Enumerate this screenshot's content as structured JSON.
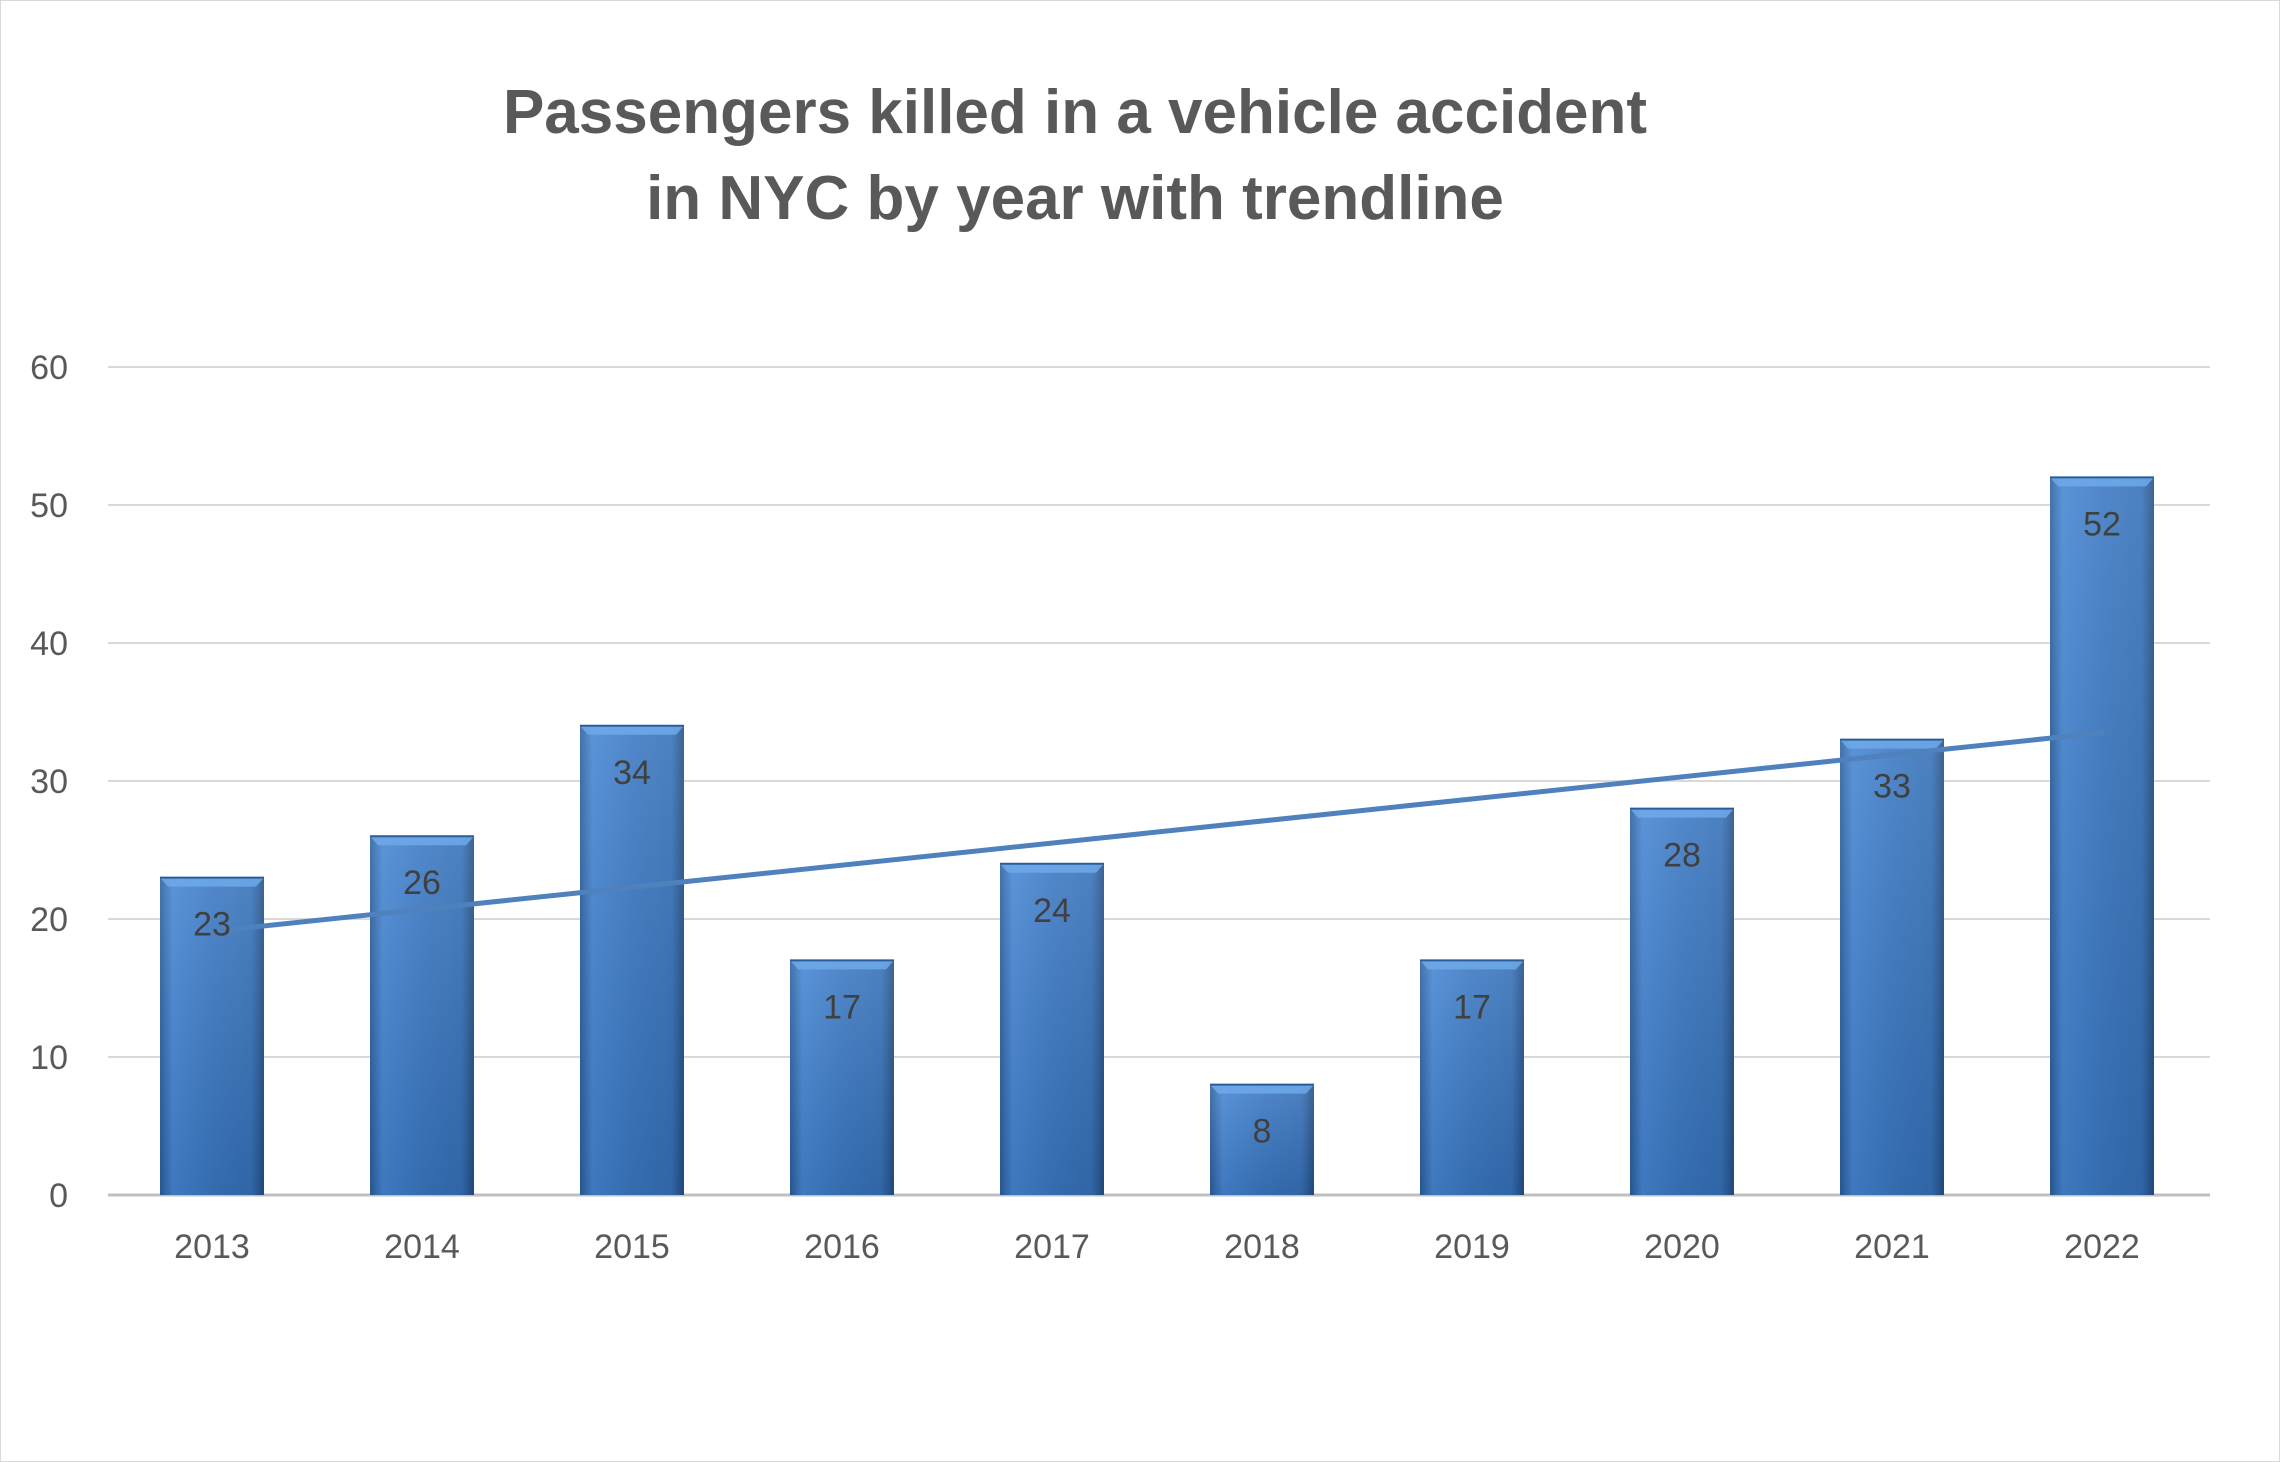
{
  "chart_data": {
    "type": "bar",
    "title_lines": [
      "Passengers killed in a vehicle accident",
      "in NYC by year with trendline"
    ],
    "categories": [
      "2013",
      "2014",
      "2015",
      "2016",
      "2017",
      "2018",
      "2019",
      "2020",
      "2021",
      "2022"
    ],
    "values": [
      23,
      26,
      34,
      17,
      24,
      8,
      17,
      28,
      33,
      52
    ],
    "data_labels": [
      "23",
      "26",
      "34",
      "17",
      "24",
      "8",
      "17",
      "28",
      "33",
      "52"
    ],
    "ylim": [
      0,
      60
    ],
    "yticks": [
      0,
      10,
      20,
      30,
      40,
      50,
      60
    ],
    "grid": true,
    "legend": "none",
    "trendline": {
      "type": "linear",
      "start": 19.1,
      "end": 33.5
    },
    "colors": {
      "bar": "#3a78c3",
      "bar_light": "#5b9be0",
      "bar_dark": "#2a5c9a",
      "trendline": "#4f81bd",
      "grid": "#d9d9d9",
      "axis_text": "#595959",
      "title": "#595959"
    }
  }
}
